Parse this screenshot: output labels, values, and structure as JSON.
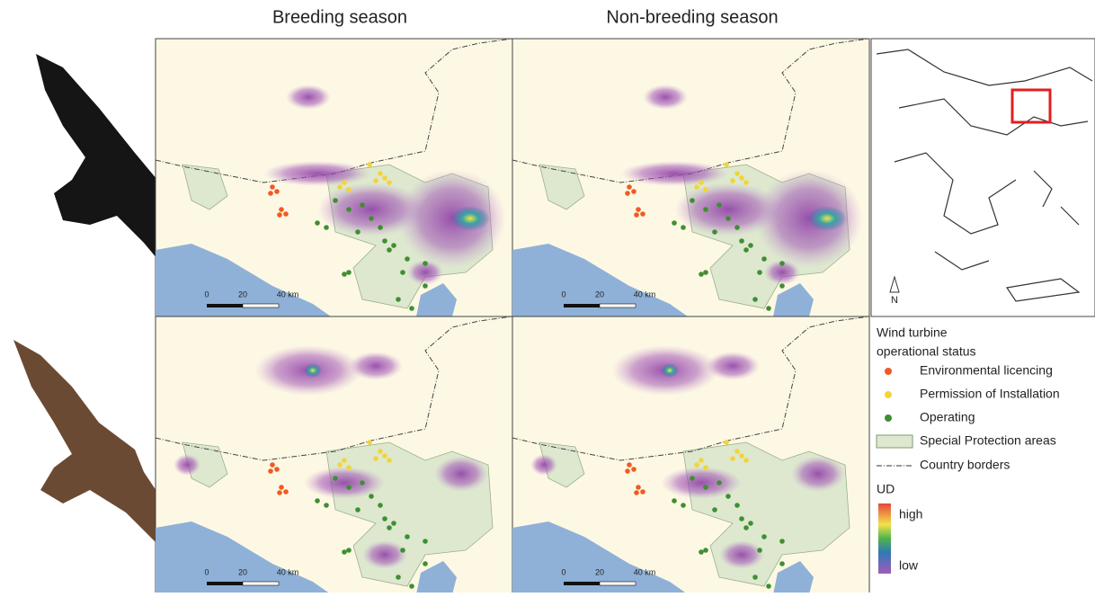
{
  "column_titles": [
    "Breeding season",
    "Non-breeding season"
  ],
  "scale_bar_labels": [
    "0",
    "20",
    "40 km"
  ],
  "north_label": "N",
  "legend": {
    "title_lines": [
      "Wind turbine",
      "operational status"
    ],
    "turbines": [
      {
        "name": "Environmental licencing",
        "color": "#f05a24"
      },
      {
        "name": "Permission of Installation",
        "color": "#f2d43a"
      },
      {
        "name": "Operating",
        "color": "#3f8f32"
      }
    ],
    "protection": "Special Protection areas",
    "borders": "Country borders",
    "ud_title": "UD",
    "ud_high": "high",
    "ud_low": "low"
  }
}
